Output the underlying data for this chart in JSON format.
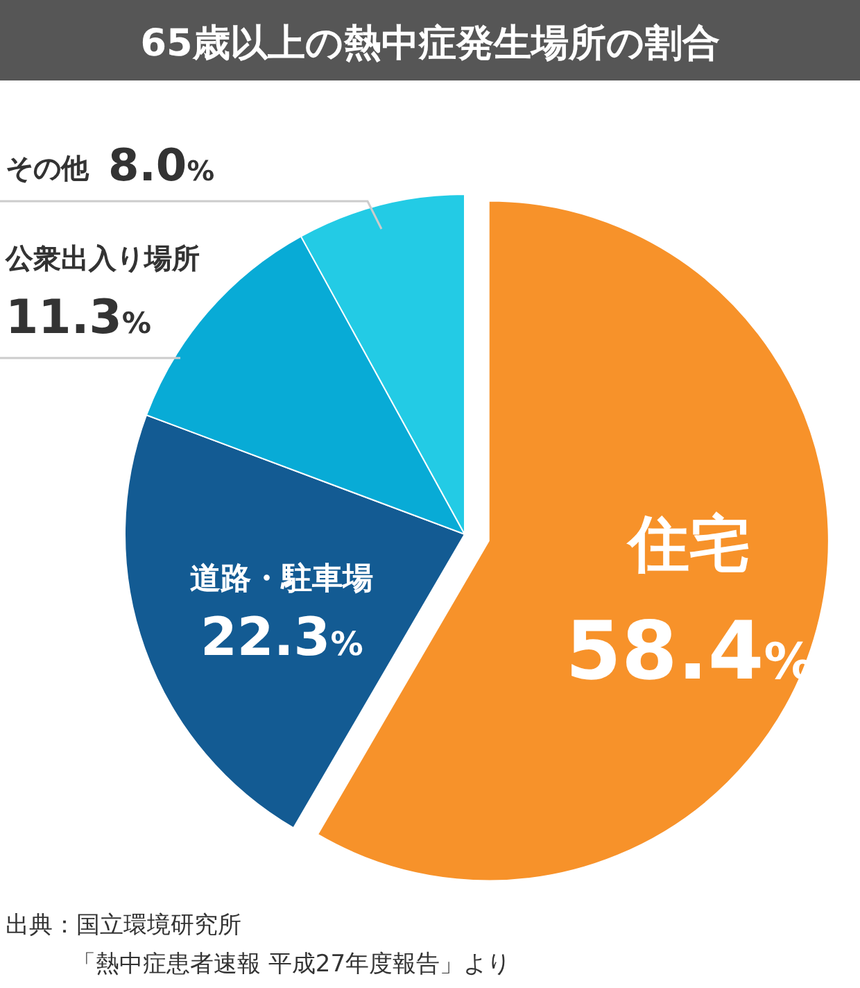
{
  "chart_data": {
    "type": "pie",
    "title": "65歳以上の熱中症発生場所の割合",
    "categories": [
      "住宅",
      "道路・駐車場",
      "公衆出入り場所",
      "その他"
    ],
    "values": [
      58.4,
      22.3,
      11.3,
      8.0
    ],
    "value_labels": [
      "58.4%",
      "22.3%",
      "11.3%",
      "8.0%"
    ],
    "colors": [
      "#f7922a",
      "#135b93",
      "#08abd6",
      "#23cbe5"
    ],
    "annotations": [
      "出典：国立環境研究所",
      "「熱中症患者速報 平成27年度報告」より"
    ]
  }
}
